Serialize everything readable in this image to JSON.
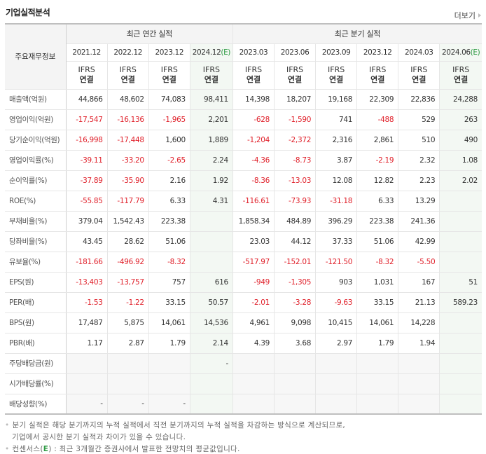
{
  "header": {
    "title": "기업실적분석",
    "more_label": "더보기"
  },
  "table": {
    "row_header_label": "주요재무정보",
    "groups": {
      "annual": "최근 연간 실적",
      "quarterly": "최근 분기 실적"
    },
    "annual_periods": [
      {
        "label": "2021.12",
        "estimate": ""
      },
      {
        "label": "2022.12",
        "estimate": ""
      },
      {
        "label": "2023.12",
        "estimate": ""
      },
      {
        "label": "2024.12",
        "estimate": "(E)"
      }
    ],
    "quarterly_periods": [
      {
        "label": "2023.03",
        "estimate": ""
      },
      {
        "label": "2023.06",
        "estimate": ""
      },
      {
        "label": "2023.09",
        "estimate": ""
      },
      {
        "label": "2023.12",
        "estimate": ""
      },
      {
        "label": "2024.03",
        "estimate": ""
      },
      {
        "label": "2024.06",
        "estimate": "(E)"
      }
    ],
    "standard": {
      "line1": "IFRS",
      "line2": "연결"
    },
    "rows": [
      {
        "label": "매출액(억원)",
        "values": [
          "44,866",
          "48,602",
          "74,083",
          "98,411",
          "14,398",
          "18,207",
          "19,168",
          "22,309",
          "22,836",
          "24,288"
        ]
      },
      {
        "label": "영업이익(억원)",
        "values": [
          "-17,547",
          "-16,136",
          "-1,965",
          "2,201",
          "-628",
          "-1,590",
          "741",
          "-488",
          "529",
          "263"
        ]
      },
      {
        "label": "당기순이익(억원)",
        "values": [
          "-16,998",
          "-17,448",
          "1,600",
          "1,889",
          "-1,204",
          "-2,372",
          "2,316",
          "2,861",
          "510",
          "490"
        ]
      },
      {
        "label": "영업이익률(%)",
        "values": [
          "-39.11",
          "-33.20",
          "-2.65",
          "2.24",
          "-4.36",
          "-8.73",
          "3.87",
          "-2.19",
          "2.32",
          "1.08"
        ]
      },
      {
        "label": "순이익률(%)",
        "values": [
          "-37.89",
          "-35.90",
          "2.16",
          "1.92",
          "-8.36",
          "-13.03",
          "12.08",
          "12.82",
          "2.23",
          "2.02"
        ]
      },
      {
        "label": "ROE(%)",
        "values": [
          "-55.85",
          "-117.79",
          "6.33",
          "4.31",
          "-116.61",
          "-73.93",
          "-31.18",
          "6.33",
          "13.29",
          ""
        ]
      },
      {
        "label": "부채비율(%)",
        "values": [
          "379.04",
          "1,542.43",
          "223.38",
          "",
          "1,858.34",
          "484.89",
          "396.29",
          "223.38",
          "241.36",
          ""
        ]
      },
      {
        "label": "당좌비율(%)",
        "values": [
          "43.45",
          "28.62",
          "51.06",
          "",
          "23.03",
          "44.12",
          "37.33",
          "51.06",
          "42.99",
          ""
        ]
      },
      {
        "label": "유보율(%)",
        "values": [
          "-181.66",
          "-496.92",
          "-8.32",
          "",
          "-517.97",
          "-152.01",
          "-121.50",
          "-8.32",
          "-5.50",
          ""
        ]
      },
      {
        "label": "EPS(원)",
        "values": [
          "-13,403",
          "-13,757",
          "757",
          "616",
          "-949",
          "-1,305",
          "903",
          "1,031",
          "167",
          "51"
        ]
      },
      {
        "label": "PER(배)",
        "values": [
          "-1.53",
          "-1.22",
          "33.15",
          "50.57",
          "-2.01",
          "-3.28",
          "-9.63",
          "33.15",
          "21.13",
          "589.23"
        ]
      },
      {
        "label": "BPS(원)",
        "values": [
          "17,487",
          "5,875",
          "14,061",
          "14,536",
          "4,961",
          "9,098",
          "10,415",
          "14,061",
          "14,228",
          ""
        ]
      },
      {
        "label": "PBR(배)",
        "values": [
          "1.17",
          "2.87",
          "1.79",
          "2.14",
          "4.39",
          "3.68",
          "2.97",
          "1.79",
          "1.94",
          ""
        ]
      },
      {
        "label": "주당배당금(원)",
        "values": [
          "",
          "",
          "",
          "-",
          "",
          "",
          "",
          "",
          "",
          ""
        ]
      },
      {
        "label": "시가배당률(%)",
        "values": [
          "",
          "",
          "",
          "",
          "",
          "",
          "",
          "",
          "",
          ""
        ]
      },
      {
        "label": "배당성향(%)",
        "values": [
          "-",
          "-",
          "-",
          "",
          "",
          "",
          "",
          "",
          "",
          ""
        ]
      }
    ]
  },
  "notes": {
    "line1": "분기 실적은 해당 분기까지의 누적 실적에서 직전 분기까지의 누적 실적을 차감하는 방식으로 계산되므로,",
    "line2": "기업에서 공시한 분기 실적과 차이가 있을 수 있습니다.",
    "line3_prefix": "컨센서스(",
    "line3_e": "E",
    "line3_suffix": ") : 최근 3개월간 증권사에서 발표한 전망치의 평균값입니다."
  },
  "colors": {
    "negative": "#e0202a",
    "ifrs": "#e05a1a",
    "estimate_mark": "#2e9a43",
    "estimate_bg": "#f3f8f3"
  }
}
